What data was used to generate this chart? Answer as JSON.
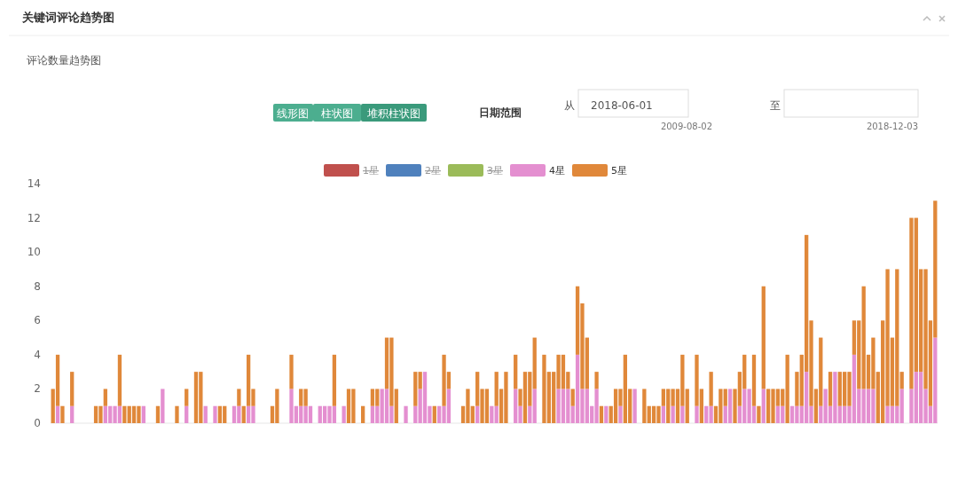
{
  "chart_data": {
    "type": "bar",
    "stacked": true,
    "title": "关键词评论趋势图",
    "subtitle": "评论数量趋势图",
    "annotations": [
      "线形图",
      "柱状图",
      "堆积柱状图",
      "日期范围",
      "从",
      "2018-06-01",
      "2009-08-02",
      "至",
      "2018-12-03"
    ],
    "legend": "top",
    "ylim": [
      0,
      14
    ],
    "yticks": [
      0,
      2,
      4,
      6,
      8,
      10,
      12,
      14
    ],
    "categories": [
      null,
      null,
      null,
      null,
      null,
      null,
      null,
      null,
      null,
      null,
      null,
      null,
      null,
      null,
      null,
      null,
      null,
      null,
      null,
      null,
      null,
      null,
      null,
      null,
      null,
      null,
      null,
      null,
      null,
      null,
      null,
      null,
      null,
      null,
      null,
      null,
      null,
      null,
      null,
      null,
      null,
      null,
      null,
      null,
      null,
      null,
      null,
      null,
      null,
      null,
      null,
      null,
      null,
      null,
      null,
      null,
      null,
      null,
      null,
      null,
      null,
      null,
      null,
      null,
      null,
      null,
      null,
      null,
      null,
      null,
      null,
      null,
      null,
      null,
      null,
      null,
      null,
      null,
      null,
      null,
      null,
      null,
      null,
      null,
      null,
      null,
      null,
      null,
      null,
      null,
      null,
      null,
      null,
      null,
      null,
      null,
      null,
      null,
      null,
      null,
      null,
      null,
      null,
      null,
      null,
      null,
      null,
      null,
      null,
      null,
      null,
      null,
      null,
      null,
      null,
      null,
      null,
      null,
      null,
      null,
      null,
      null,
      null,
      null,
      null,
      null,
      null,
      null,
      null,
      null,
      null,
      null,
      null,
      null,
      null,
      null,
      null,
      null,
      null,
      null,
      null,
      null,
      null,
      null,
      null,
      null,
      null,
      null,
      null,
      null,
      null,
      null,
      null,
      null,
      null,
      null,
      null,
      null,
      null,
      null,
      null,
      null,
      null,
      null,
      null,
      null,
      null,
      null,
      null,
      null,
      null,
      null,
      null,
      null,
      null,
      null,
      null,
      null,
      null,
      null,
      null,
      null,
      null,
      null,
      null,
      null
    ],
    "series": [
      {
        "name": "1星",
        "color": "#c0504d",
        "values": [
          null,
          null,
          null,
          null,
          null,
          null,
          null,
          null,
          null,
          null,
          null,
          null,
          null,
          null,
          null,
          null,
          null,
          null,
          null,
          null,
          null,
          null,
          null,
          null,
          null,
          null,
          null,
          null,
          null,
          null,
          null,
          null,
          null,
          null,
          null,
          null,
          null,
          null,
          null,
          null,
          null,
          null,
          null,
          null,
          null,
          null,
          null,
          null,
          null,
          null,
          null,
          null,
          null,
          null,
          null,
          null,
          null,
          null,
          null,
          null,
          null,
          null,
          null,
          null,
          null,
          null,
          null,
          null,
          null,
          null,
          null,
          null,
          null,
          null,
          null,
          null,
          null,
          null,
          null,
          null,
          null,
          null,
          null,
          null,
          null,
          null,
          null,
          null,
          null,
          null,
          null,
          null,
          null,
          null,
          null,
          null,
          null,
          null,
          null,
          null,
          null,
          null,
          null,
          null,
          null,
          null,
          null,
          null,
          null,
          null,
          null,
          null,
          null,
          null,
          null,
          null,
          null,
          null,
          null,
          null,
          null,
          null,
          null,
          null,
          null,
          null,
          null,
          null,
          null,
          null,
          null,
          null,
          null,
          null,
          null,
          null,
          null,
          null,
          null,
          null,
          null,
          null,
          null,
          null,
          null,
          null,
          null,
          null,
          null,
          null,
          null,
          null,
          null,
          null,
          null,
          null,
          null,
          null,
          null,
          null,
          null,
          null,
          null,
          null,
          null,
          null,
          null,
          null,
          null,
          null,
          null,
          null,
          null,
          null,
          null,
          null,
          null,
          null,
          null,
          null,
          null,
          null,
          null,
          null,
          null,
          null
        ]
      },
      {
        "name": "2星",
        "color": "#4f81bd",
        "values": [
          null,
          null,
          null,
          null,
          null,
          null,
          null,
          null,
          null,
          null,
          null,
          null,
          null,
          null,
          null,
          null,
          null,
          null,
          null,
          null,
          null,
          null,
          null,
          null,
          null,
          null,
          null,
          null,
          null,
          null,
          null,
          null,
          null,
          null,
          null,
          null,
          null,
          null,
          null,
          null,
          null,
          null,
          null,
          null,
          null,
          null,
          null,
          null,
          null,
          null,
          null,
          null,
          null,
          null,
          null,
          null,
          null,
          null,
          null,
          null,
          null,
          null,
          null,
          null,
          null,
          null,
          null,
          null,
          null,
          null,
          null,
          null,
          null,
          null,
          null,
          null,
          null,
          null,
          null,
          null,
          null,
          null,
          null,
          null,
          null,
          null,
          null,
          null,
          null,
          null,
          null,
          null,
          null,
          null,
          null,
          null,
          null,
          null,
          null,
          null,
          null,
          null,
          null,
          null,
          null,
          null,
          null,
          null,
          null,
          null,
          null,
          null,
          null,
          null,
          null,
          null,
          null,
          null,
          null,
          null,
          null,
          null,
          null,
          null,
          null,
          null,
          null,
          null,
          null,
          null,
          null,
          null,
          null,
          null,
          null,
          null,
          null,
          null,
          null,
          null,
          null,
          null,
          null,
          null,
          null,
          null,
          null,
          null,
          null,
          null,
          null,
          null,
          null,
          null,
          null,
          null,
          null,
          null,
          null,
          null,
          null,
          null,
          null,
          null,
          null,
          null,
          null,
          null,
          null,
          null,
          null,
          null,
          null,
          null,
          null,
          null,
          null,
          null,
          null,
          null,
          null,
          null,
          null,
          null,
          null,
          null
        ]
      },
      {
        "name": "3星",
        "color": "#9bbb59",
        "values": [
          null,
          null,
          null,
          null,
          null,
          null,
          null,
          null,
          null,
          null,
          null,
          null,
          null,
          null,
          null,
          null,
          null,
          null,
          null,
          null,
          null,
          null,
          null,
          null,
          null,
          null,
          null,
          null,
          null,
          null,
          null,
          null,
          null,
          null,
          null,
          null,
          null,
          null,
          null,
          null,
          null,
          null,
          null,
          null,
          null,
          null,
          null,
          null,
          null,
          null,
          null,
          null,
          null,
          null,
          null,
          null,
          null,
          null,
          null,
          null,
          null,
          null,
          null,
          null,
          null,
          null,
          null,
          null,
          null,
          null,
          null,
          null,
          null,
          null,
          null,
          null,
          null,
          null,
          null,
          null,
          null,
          null,
          null,
          null,
          null,
          null,
          null,
          null,
          null,
          null,
          null,
          null,
          null,
          null,
          null,
          null,
          null,
          null,
          null,
          null,
          null,
          null,
          null,
          null,
          null,
          null,
          null,
          null,
          null,
          null,
          null,
          null,
          null,
          null,
          null,
          null,
          null,
          null,
          null,
          null,
          null,
          null,
          null,
          null,
          null,
          null,
          null,
          null,
          null,
          null,
          null,
          null,
          null,
          null,
          null,
          null,
          null,
          null,
          null,
          null,
          null,
          null,
          null,
          null,
          null,
          null,
          null,
          null,
          null,
          null,
          null,
          null,
          null,
          null,
          null,
          null,
          null,
          null,
          null,
          null,
          null,
          null,
          null,
          null,
          null,
          null,
          null,
          null,
          null,
          null,
          null,
          null,
          null,
          null,
          null,
          null,
          null,
          null,
          null,
          null,
          null,
          null,
          null,
          null,
          null,
          null
        ]
      },
      {
        "name": "4星",
        "color": "#e48fd0",
        "values": [
          0,
          1,
          0,
          0,
          1,
          0,
          0,
          0,
          0,
          0,
          0,
          1,
          1,
          1,
          1,
          0,
          0,
          0,
          0,
          1,
          0,
          0,
          0,
          2,
          0,
          0,
          0,
          0,
          1,
          0,
          0,
          0,
          1,
          0,
          1,
          0,
          0,
          0,
          1,
          1,
          0,
          1,
          1,
          0,
          0,
          0,
          0,
          0,
          0,
          0,
          2,
          1,
          1,
          1,
          1,
          0,
          1,
          1,
          1,
          1,
          0,
          1,
          0,
          0,
          0,
          0,
          0,
          1,
          1,
          2,
          2,
          1,
          0,
          0,
          1,
          0,
          1,
          2,
          3,
          1,
          0,
          1,
          1,
          2,
          0,
          0,
          0,
          0,
          0,
          1,
          0,
          0,
          1,
          1,
          0,
          0,
          0,
          2,
          1,
          0,
          1,
          2,
          0,
          0,
          0,
          0,
          2,
          2,
          2,
          1,
          4,
          2,
          2,
          1,
          2,
          0,
          1,
          0,
          0,
          1,
          0,
          0,
          2,
          0,
          0,
          0,
          0,
          0,
          1,
          0,
          1,
          0,
          1,
          0,
          0,
          1,
          0,
          1,
          1,
          0,
          0,
          1,
          2,
          0,
          1,
          2,
          2,
          1,
          0,
          2,
          0,
          0,
          1,
          1,
          0,
          1,
          1,
          1,
          3,
          1,
          0,
          1,
          2,
          1,
          3,
          1,
          1,
          1,
          4,
          2,
          2,
          2,
          2,
          0,
          0,
          1,
          1,
          1,
          2,
          0,
          2,
          3,
          3,
          2,
          1,
          5
        ]
      },
      {
        "name": "5星",
        "color": "#e0883a",
        "values": [
          2,
          3,
          1,
          0,
          2,
          0,
          0,
          0,
          0,
          1,
          1,
          1,
          0,
          0,
          3,
          1,
          1,
          1,
          1,
          0,
          0,
          0,
          1,
          0,
          0,
          0,
          1,
          0,
          1,
          0,
          3,
          3,
          0,
          0,
          0,
          1,
          1,
          0,
          0,
          1,
          1,
          3,
          1,
          0,
          0,
          0,
          1,
          2,
          0,
          0,
          2,
          0,
          1,
          1,
          0,
          0,
          0,
          0,
          0,
          3,
          0,
          0,
          2,
          2,
          0,
          1,
          0,
          1,
          1,
          0,
          3,
          4,
          2,
          0,
          0,
          0,
          2,
          1,
          0,
          0,
          1,
          0,
          3,
          1,
          0,
          0,
          1,
          2,
          1,
          2,
          2,
          2,
          0,
          2,
          2,
          3,
          0,
          2,
          1,
          3,
          2,
          3,
          0,
          4,
          3,
          3,
          2,
          2,
          1,
          1,
          4,
          5,
          3,
          0,
          1,
          1,
          0,
          1,
          2,
          1,
          4,
          2,
          0,
          0,
          2,
          1,
          1,
          1,
          1,
          2,
          1,
          2,
          3,
          2,
          0,
          3,
          2,
          0,
          2,
          1,
          2,
          1,
          0,
          2,
          2,
          2,
          0,
          3,
          1,
          6,
          2,
          2,
          1,
          1,
          4,
          0,
          2,
          3,
          8,
          5,
          2,
          4,
          0,
          2,
          0,
          2,
          2,
          2,
          2,
          4,
          6,
          2,
          3,
          3,
          6,
          8,
          4,
          8,
          1,
          0,
          10,
          9,
          6,
          7,
          5,
          8
        ]
      }
    ]
  }
}
